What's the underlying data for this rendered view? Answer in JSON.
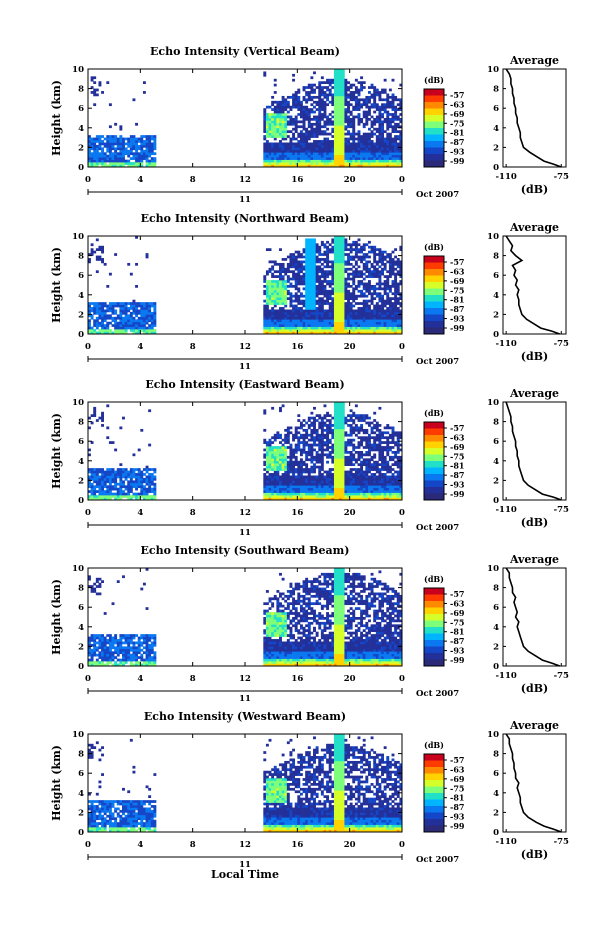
{
  "chart_data": {
    "type": "heatmap",
    "xlabel": "Local Time",
    "date_label": "11",
    "month_label": "Oct 2007",
    "x_ticks": [
      "0",
      "4",
      "8",
      "12",
      "16",
      "20",
      "0"
    ],
    "xlim": [
      0,
      24
    ],
    "y_ticks": [
      "0",
      "2",
      "4",
      "6",
      "8",
      "10"
    ],
    "ylim": [
      0,
      10
    ],
    "ylabel": "Height (km)",
    "colorbar": {
      "unit": "(dB)",
      "ticks": [
        "-57",
        "-63",
        "-69",
        "-75",
        "-81",
        "-87",
        "-93",
        "-99"
      ],
      "colors": [
        "#c8001e",
        "#ff3b00",
        "#ff8a00",
        "#ffd200",
        "#d6ff2a",
        "#7dff7a",
        "#22e0c8",
        "#00b4ff",
        "#0a78f0",
        "#1446c8",
        "#23309a",
        "#2a2a78"
      ]
    },
    "profile": {
      "title": "Average",
      "xlabel": "(dB)",
      "x_ticks": [
        "-110",
        "-75"
      ],
      "xlim": [
        -112,
        -72
      ]
    },
    "panels": [
      {
        "title": "Echo Intensity (Vertical Beam)",
        "profile_heights": [
          0,
          0.3,
          0.6,
          1,
          1.5,
          2,
          2.5,
          3,
          3.5,
          4,
          4.5,
          5,
          5.5,
          6,
          6.5,
          7,
          7.5,
          8,
          8.5,
          9,
          9.5,
          10
        ],
        "profile_values": [
          -75,
          -80,
          -86,
          -90,
          -95,
          -99,
          -100,
          -101,
          -101,
          -102,
          -103,
          -103,
          -104,
          -104,
          -105,
          -105,
          -106,
          -106,
          -107,
          -107,
          -108,
          -110
        ]
      },
      {
        "title": "Echo Intensity (Northward Beam)",
        "profile_heights": [
          0,
          0.3,
          0.6,
          1,
          1.5,
          2,
          2.5,
          3,
          3.5,
          4,
          4.5,
          5,
          5.5,
          6,
          6.5,
          7,
          7.5,
          8,
          8.5,
          9,
          9.5,
          10
        ],
        "profile_values": [
          -76,
          -81,
          -88,
          -92,
          -97,
          -100,
          -101,
          -102,
          -102,
          -103,
          -102,
          -104,
          -103,
          -105,
          -104,
          -106,
          -100,
          -104,
          -107,
          -106,
          -108,
          -110
        ]
      },
      {
        "title": "Echo Intensity (Eastward Beam)",
        "profile_heights": [
          0,
          0.3,
          0.6,
          1,
          1.5,
          2,
          2.5,
          3,
          3.5,
          4,
          4.5,
          5,
          5.5,
          6,
          6.5,
          7,
          7.5,
          8,
          8.5,
          9,
          9.5,
          10
        ],
        "profile_values": [
          -75,
          -80,
          -87,
          -91,
          -96,
          -99,
          -100,
          -101,
          -102,
          -102,
          -103,
          -103,
          -104,
          -104,
          -105,
          -106,
          -106,
          -107,
          -107,
          -108,
          -109,
          -110
        ]
      },
      {
        "title": "Echo Intensity (Southward Beam)",
        "profile_heights": [
          0,
          0.3,
          0.6,
          1,
          1.5,
          2,
          2.5,
          3,
          3.5,
          4,
          4.5,
          5,
          5.5,
          6,
          6.5,
          7,
          7.5,
          8,
          8.5,
          9,
          9.5,
          10
        ],
        "profile_values": [
          -76,
          -81,
          -87,
          -91,
          -96,
          -99,
          -100,
          -101,
          -102,
          -103,
          -102,
          -104,
          -103,
          -104,
          -105,
          -104,
          -106,
          -106,
          -107,
          -108,
          -108,
          -110
        ]
      },
      {
        "title": "Echo Intensity (Westward Beam)",
        "profile_heights": [
          0,
          0.3,
          0.6,
          1,
          1.5,
          2,
          2.5,
          3,
          3.5,
          4,
          4.5,
          5,
          5.5,
          6,
          6.5,
          7,
          7.5,
          8,
          8.5,
          9,
          9.5,
          10
        ],
        "profile_values": [
          -75,
          -80,
          -86,
          -91,
          -96,
          -99,
          -100,
          -101,
          -101,
          -102,
          -103,
          -102,
          -104,
          -104,
          -105,
          -105,
          -106,
          -106,
          -107,
          -108,
          -108,
          -110
        ]
      }
    ]
  }
}
